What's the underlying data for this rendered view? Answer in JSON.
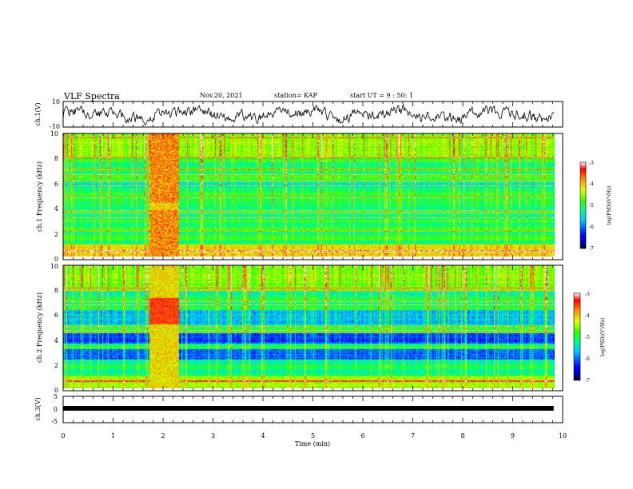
{
  "header": {
    "title": "VLF Spectra",
    "date": "Nov.20, 2021",
    "station": "station= KAP",
    "start": "start UT = 9 : 50: 1"
  },
  "chart_data": [
    {
      "type": "line",
      "panel": "waveform-ch1",
      "ylabel": "ch.1(V)",
      "ylim": [
        -10,
        10
      ],
      "yticks": [
        "10",
        "-10"
      ],
      "xlim": [
        0,
        10
      ]
    },
    {
      "type": "heatmap",
      "panel": "spectrogram-ch1",
      "ylabel": "ch.1 Frequency (kHz)",
      "ylim": [
        0,
        10
      ],
      "yticks": [
        "0",
        "2",
        "4",
        "6",
        "8",
        "10"
      ],
      "xlim": [
        0,
        10
      ],
      "colorbar": {
        "label": "log(PSD)(V²/Hz)",
        "ticks": [
          "-3",
          "-4",
          "-5",
          "-6",
          "-7"
        ],
        "range": [
          -7,
          -3
        ]
      },
      "burst": {
        "t_start": 1.72,
        "t_end": 2.32
      }
    },
    {
      "type": "heatmap",
      "panel": "spectrogram-ch2",
      "ylabel": "ch.2 Frequency (kHz)",
      "ylim": [
        0,
        10
      ],
      "yticks": [
        "0",
        "2",
        "4",
        "6",
        "8",
        "10"
      ],
      "xlim": [
        0,
        10
      ],
      "colorbar": {
        "label": "log(PSD)(V²/Hz)",
        "ticks": [
          "-3",
          "-4",
          "-5",
          "-6",
          "-7"
        ],
        "range": [
          -7,
          -3
        ]
      },
      "burst": {
        "t_start": 1.72,
        "t_end": 2.32
      }
    },
    {
      "type": "line",
      "panel": "waveform-ch3",
      "ylabel": "ch.3(V)",
      "ylim": [
        -5,
        5
      ],
      "yticks": [
        "5",
        "0",
        "-5"
      ],
      "value": 0,
      "xlim": [
        0,
        9.82
      ],
      "xlabel": "Time (min)",
      "xticks": [
        "0",
        "1",
        "2",
        "3",
        "4",
        "5",
        "6",
        "7",
        "8",
        "9",
        "10"
      ]
    }
  ]
}
